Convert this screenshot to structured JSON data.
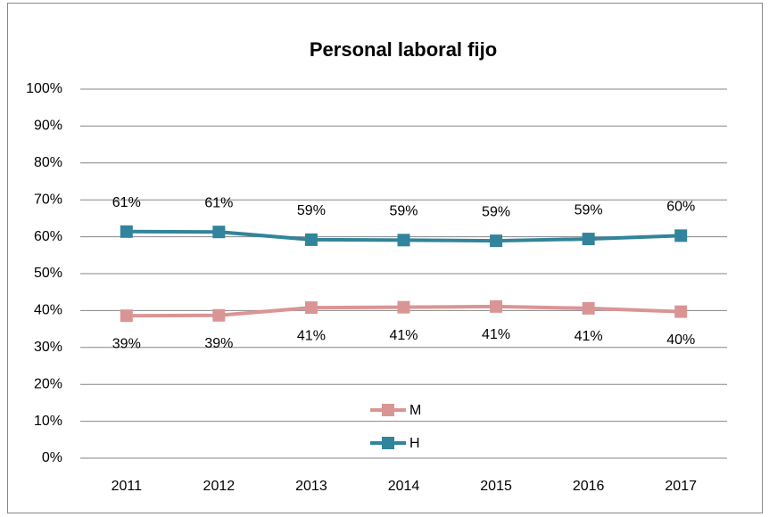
{
  "chart_data": {
    "type": "line",
    "title": "Personal laboral fijo",
    "categories": [
      "2011",
      "2012",
      "2013",
      "2014",
      "2015",
      "2016",
      "2017"
    ],
    "series": [
      {
        "name": "M",
        "color": "#d99594",
        "values": [
          38.6,
          38.7,
          40.8,
          40.9,
          41.1,
          40.6,
          39.7
        ],
        "value_labels": [
          "39%",
          "39%",
          "41%",
          "41%",
          "41%",
          "41%",
          "40%"
        ]
      },
      {
        "name": "H",
        "color": "#31849b",
        "values": [
          61.4,
          61.3,
          59.2,
          59.1,
          58.9,
          59.4,
          60.3
        ],
        "value_labels": [
          "61%",
          "61%",
          "59%",
          "59%",
          "59%",
          "59%",
          "60%"
        ]
      }
    ],
    "ylim": [
      0,
      100
    ],
    "yticks": [
      {
        "value": 0,
        "label": "0%"
      },
      {
        "value": 10,
        "label": "10%"
      },
      {
        "value": 20,
        "label": "20%"
      },
      {
        "value": 30,
        "label": "30%"
      },
      {
        "value": 40,
        "label": "40%"
      },
      {
        "value": 50,
        "label": "50%"
      },
      {
        "value": 60,
        "label": "60%"
      },
      {
        "value": 70,
        "label": "70%"
      },
      {
        "value": 80,
        "label": "80%"
      },
      {
        "value": 90,
        "label": "90%"
      },
      {
        "value": 100,
        "label": "100%"
      }
    ],
    "grid": true,
    "legend": "lower center"
  }
}
